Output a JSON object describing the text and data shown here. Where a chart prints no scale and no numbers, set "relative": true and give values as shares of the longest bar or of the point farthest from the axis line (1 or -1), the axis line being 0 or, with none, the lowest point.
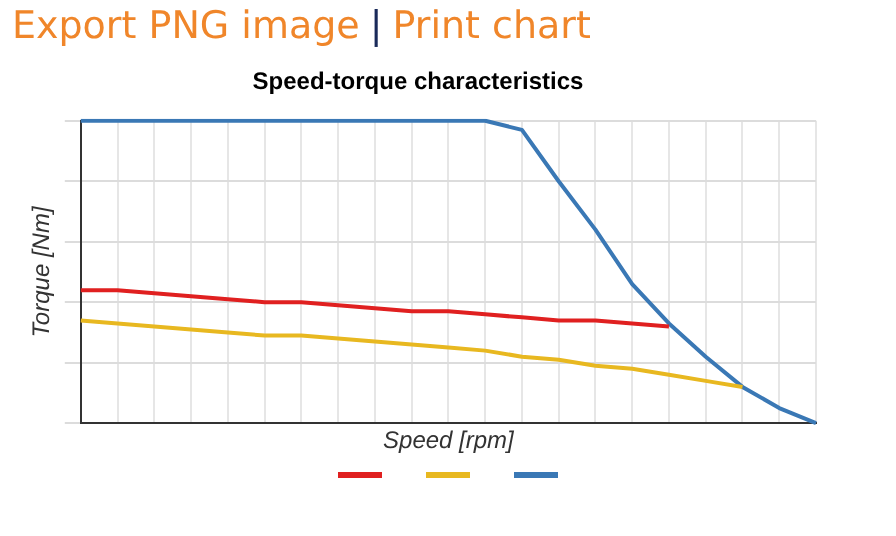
{
  "chart_data": {
    "type": "line",
    "title": "Speed-torque characteristics",
    "xlabel": "Speed [rpm]",
    "ylabel": "Torque [Nm]",
    "annotations": [
      "Export PNG image",
      "|",
      "Print chart"
    ],
    "relative": true,
    "grid": true,
    "marker": "none",
    "categories": [
      null,
      null,
      null,
      null,
      null,
      null,
      null,
      null,
      null,
      null,
      null,
      null,
      null,
      null,
      null,
      null,
      null,
      null,
      null,
      null,
      null
    ],
    "series": [
      {
        "color": "#e02020",
        "values": [
          0.44,
          0.44,
          0.43,
          0.42,
          0.41,
          0.4,
          0.4,
          0.39,
          0.38,
          0.37,
          0.37,
          0.36,
          0.35,
          0.34,
          0.34,
          0.33,
          0.32,
          null,
          null,
          null,
          null
        ]
      },
      {
        "color": "#e8b820",
        "values": [
          0.34,
          0.33,
          0.32,
          0.31,
          0.3,
          0.29,
          0.29,
          0.28,
          0.27,
          0.26,
          0.25,
          0.24,
          0.22,
          0.21,
          0.19,
          0.18,
          0.16,
          0.14,
          0.12,
          null,
          null
        ]
      },
      {
        "color": "#3a78b5",
        "values": [
          1,
          1,
          1,
          1,
          1,
          1,
          1,
          1,
          1,
          1,
          1,
          1,
          0.97,
          0.8,
          0.64,
          0.46,
          0.33,
          0.22,
          0.12,
          0.05,
          0
        ]
      }
    ]
  }
}
